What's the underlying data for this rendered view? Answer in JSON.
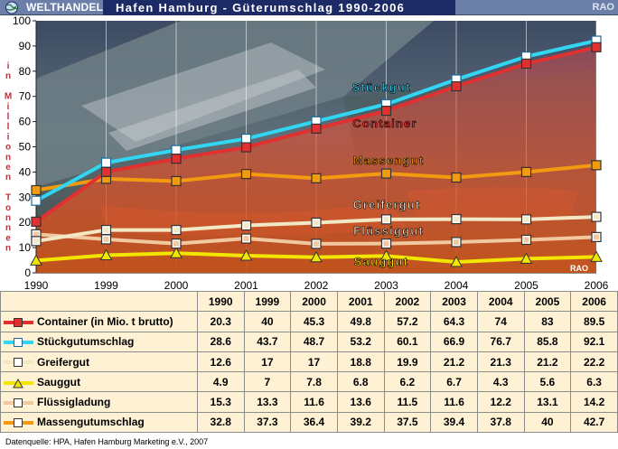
{
  "header": {
    "brand": "WELTHANDEL",
    "title": "Hafen Hamburg - Güterumschlag 1990-2006",
    "rao": "RAO"
  },
  "chart_data": {
    "type": "line",
    "x": [
      "1990",
      "1999",
      "2000",
      "2001",
      "2002",
      "2003",
      "2004",
      "2005",
      "2006"
    ],
    "ylim": [
      0,
      100
    ],
    "yticks": [
      0,
      10,
      20,
      30,
      40,
      50,
      60,
      70,
      80,
      90,
      100
    ],
    "ylabel": "in Millionen Tonnen",
    "grid": "vertical",
    "chart_watermark": "RAO",
    "series": [
      {
        "name": "Container",
        "table_label": "Container (in Mio. t brutto)",
        "color": "#e03030",
        "marker": "square",
        "fill": true,
        "values": [
          20.3,
          40,
          45.3,
          49.8,
          57.2,
          64.3,
          74,
          83,
          89.5
        ]
      },
      {
        "name": "Stückgut",
        "table_label": "Stückgutumschlag",
        "color": "#33d6f2",
        "marker": "square",
        "fill": false,
        "values": [
          28.6,
          43.7,
          48.7,
          53.2,
          60.1,
          66.9,
          76.7,
          85.8,
          92.1
        ]
      },
      {
        "name": "Greifergut",
        "table_label": "Greifergut",
        "color": "#f3e8c6",
        "marker": "square",
        "fill": false,
        "values": [
          12.6,
          17,
          17,
          18.8,
          19.9,
          21.2,
          21.3,
          21.2,
          22.2
        ]
      },
      {
        "name": "Sauggut",
        "table_label": "Sauggut",
        "color": "#f2e600",
        "marker": "triangle",
        "fill": false,
        "values": [
          4.9,
          7,
          7.8,
          6.8,
          6.2,
          6.7,
          4.3,
          5.6,
          6.3
        ]
      },
      {
        "name": "Flüssiggut",
        "table_label": "Flüssigladung",
        "color": "#f2c8a0",
        "marker": "square",
        "fill": false,
        "values": [
          15.3,
          13.3,
          11.6,
          13.6,
          11.5,
          11.6,
          12.2,
          13.1,
          14.2
        ]
      },
      {
        "name": "Massengut",
        "table_label": "Massengutumschlag",
        "color": "#f29a10",
        "marker": "square",
        "fill": false,
        "values": [
          32.8,
          37.3,
          36.4,
          39.2,
          37.5,
          39.4,
          37.8,
          40,
          42.7
        ]
      }
    ]
  },
  "source": "Datenquelle: HPA, Hafen Hamburg Marketing e.V., 2007"
}
